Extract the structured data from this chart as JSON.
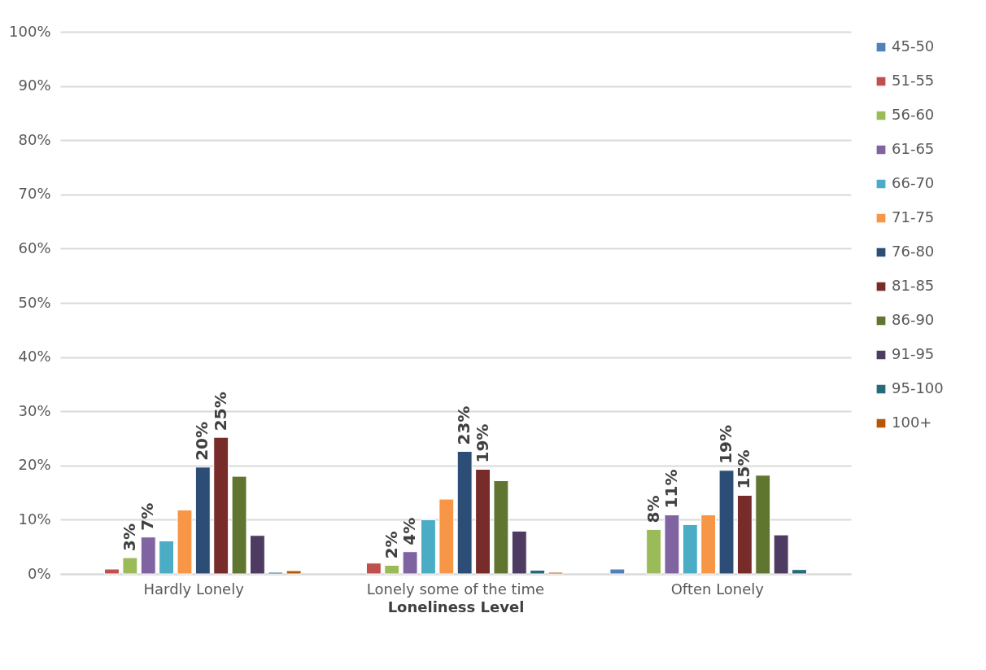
{
  "chart_data": {
    "type": "bar",
    "xlabel": "Loneliness Level",
    "categories": [
      "Hardly Lonely",
      "Lonely some of the time",
      "Often Lonely"
    ],
    "series": [
      {
        "name": "45-50",
        "color": "#4f81bd",
        "values": [
          null,
          null,
          0.9
        ]
      },
      {
        "name": "51-55",
        "color": "#c0504d",
        "values": [
          0.9,
          2.0,
          null
        ]
      },
      {
        "name": "56-60",
        "color": "#9bbb59",
        "values": [
          3.0,
          1.6,
          8.2
        ],
        "value_labels": [
          "3%",
          "2%",
          "8%"
        ]
      },
      {
        "name": "61-65",
        "color": "#8064a2",
        "values": [
          6.8,
          4.1,
          10.9
        ],
        "value_labels": [
          "7%",
          "4%",
          "11%"
        ]
      },
      {
        "name": "66-70",
        "color": "#4bacc6",
        "values": [
          6.1,
          10.0,
          9.1
        ]
      },
      {
        "name": "71-75",
        "color": "#f79646",
        "values": [
          11.8,
          13.8,
          10.9
        ]
      },
      {
        "name": "76-80",
        "color": "#2c4d75",
        "values": [
          19.7,
          22.6,
          19.1
        ],
        "value_labels": [
          "20%",
          "23%",
          "19%"
        ]
      },
      {
        "name": "81-85",
        "color": "#772c2a",
        "values": [
          25.2,
          19.3,
          14.5
        ],
        "value_labels": [
          "25%",
          "19%",
          "15%"
        ]
      },
      {
        "name": "86-90",
        "color": "#5f7530",
        "values": [
          18.0,
          17.2,
          18.2
        ]
      },
      {
        "name": "91-95",
        "color": "#4d3b62",
        "values": [
          7.1,
          7.9,
          7.2
        ]
      },
      {
        "name": "95-100",
        "color": "#276a7c",
        "values": [
          0.3,
          0.7,
          0.8
        ]
      },
      {
        "name": "100+",
        "color": "#b65708",
        "values": [
          0.6,
          0.3,
          null
        ]
      }
    ],
    "ylim": [
      0,
      100
    ],
    "yticks": [
      {
        "value": 0,
        "label": "0%"
      },
      {
        "value": 10,
        "label": "10%"
      },
      {
        "value": 20,
        "label": "20%"
      },
      {
        "value": 30,
        "label": "30%"
      },
      {
        "value": 40,
        "label": "40%"
      },
      {
        "value": 50,
        "label": "50%"
      },
      {
        "value": 60,
        "label": "60%"
      },
      {
        "value": 70,
        "label": "70%"
      },
      {
        "value": 80,
        "label": "80%"
      },
      {
        "value": 90,
        "label": "90%"
      },
      {
        "value": 100,
        "label": "100%"
      }
    ],
    "grid": "y",
    "legend": "right"
  }
}
